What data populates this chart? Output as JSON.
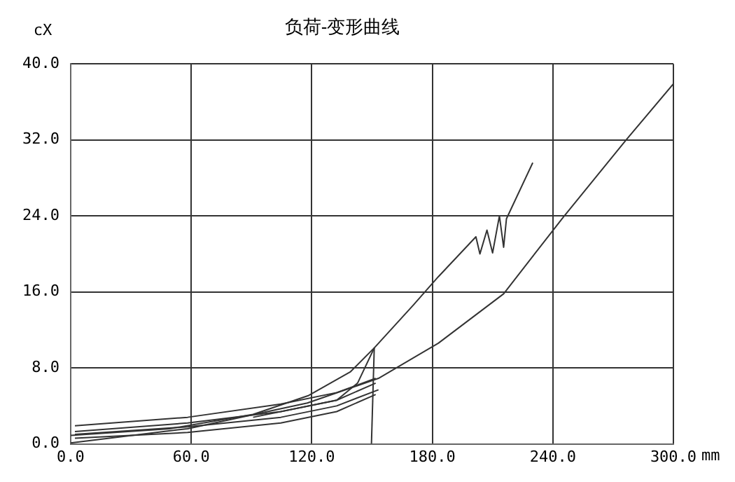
{
  "chart_data": {
    "type": "line",
    "title": "负荷-变形曲线",
    "ylabel": "cX",
    "xlabel": "mm",
    "xlim": [
      0,
      300
    ],
    "xticks": [
      {
        "value": 0,
        "label": "0.0"
      },
      {
        "value": 60,
        "label": "60.0"
      },
      {
        "value": 120,
        "label": "120.0"
      },
      {
        "value": 180,
        "label": "180.0"
      },
      {
        "value": 240,
        "label": "240.0"
      },
      {
        "value": 300,
        "label": "300.0"
      }
    ],
    "ylim": [
      0,
      40
    ],
    "yticks": [
      {
        "value": 0,
        "label": "0.0"
      },
      {
        "value": 8,
        "label": "8.0"
      },
      {
        "value": 16,
        "label": "16.0"
      },
      {
        "value": 24,
        "label": "24.0"
      },
      {
        "value": 32,
        "label": "32.0"
      },
      {
        "value": 40,
        "label": "40.0"
      }
    ],
    "grid": true,
    "marker": "none",
    "line_style": "solid",
    "legend": false,
    "series": [
      {
        "color": "#333333",
        "x": [
          0,
          49.2,
          90.8,
          118.5,
          139.3,
          151.1,
          170.5,
          183,
          201.7,
          203.7,
          207.2,
          210,
          213.4,
          215.5,
          216.9,
          230
        ],
        "values": [
          0.9,
          1.6,
          3.1,
          5.1,
          7.6,
          10.1,
          14.6,
          17.6,
          21.8,
          20.0,
          22.5,
          20.1,
          24.0,
          20.7,
          23.7,
          29.6
        ]
      },
      {
        "color": "#333333",
        "x": [
          151.1,
          149.7
        ],
        "values": [
          10.1,
          0
        ]
      },
      {
        "color": "#333333",
        "x": [
          0,
          58.2,
          117.8,
          153.2,
          183,
          215.5,
          245.3,
          276.5,
          300
        ],
        "values": [
          0.1,
          1.6,
          4.3,
          6.9,
          10.6,
          15.8,
          23.9,
          32,
          37.9
        ]
      },
      {
        "color": "#333333",
        "x": [
          2.1,
          58.2,
          104.6,
          132.4,
          151.8
        ],
        "values": [
          1.9,
          2.8,
          4.2,
          5.4,
          6.9
        ]
      },
      {
        "color": "#333333",
        "x": [
          2.1,
          58.2,
          104.6,
          132.4,
          151.8
        ],
        "values": [
          1.3,
          2.2,
          3.4,
          4.6,
          6.4
        ]
      },
      {
        "color": "#333333",
        "x": [
          2.1,
          58.2,
          104.6,
          132.4,
          153.2
        ],
        "values": [
          1.0,
          1.8,
          2.8,
          4.0,
          5.7
        ]
      },
      {
        "color": "#333333",
        "x": [
          2.1,
          58.2,
          104.6,
          132.4,
          151.8
        ],
        "values": [
          0.6,
          1.2,
          2.2,
          3.4,
          5.2
        ]
      },
      {
        "color": "#333333",
        "x": [
          90.8,
          132.4,
          142.8,
          151.1
        ],
        "values": [
          2.8,
          4.6,
          6.4,
          10.1
        ]
      }
    ]
  }
}
